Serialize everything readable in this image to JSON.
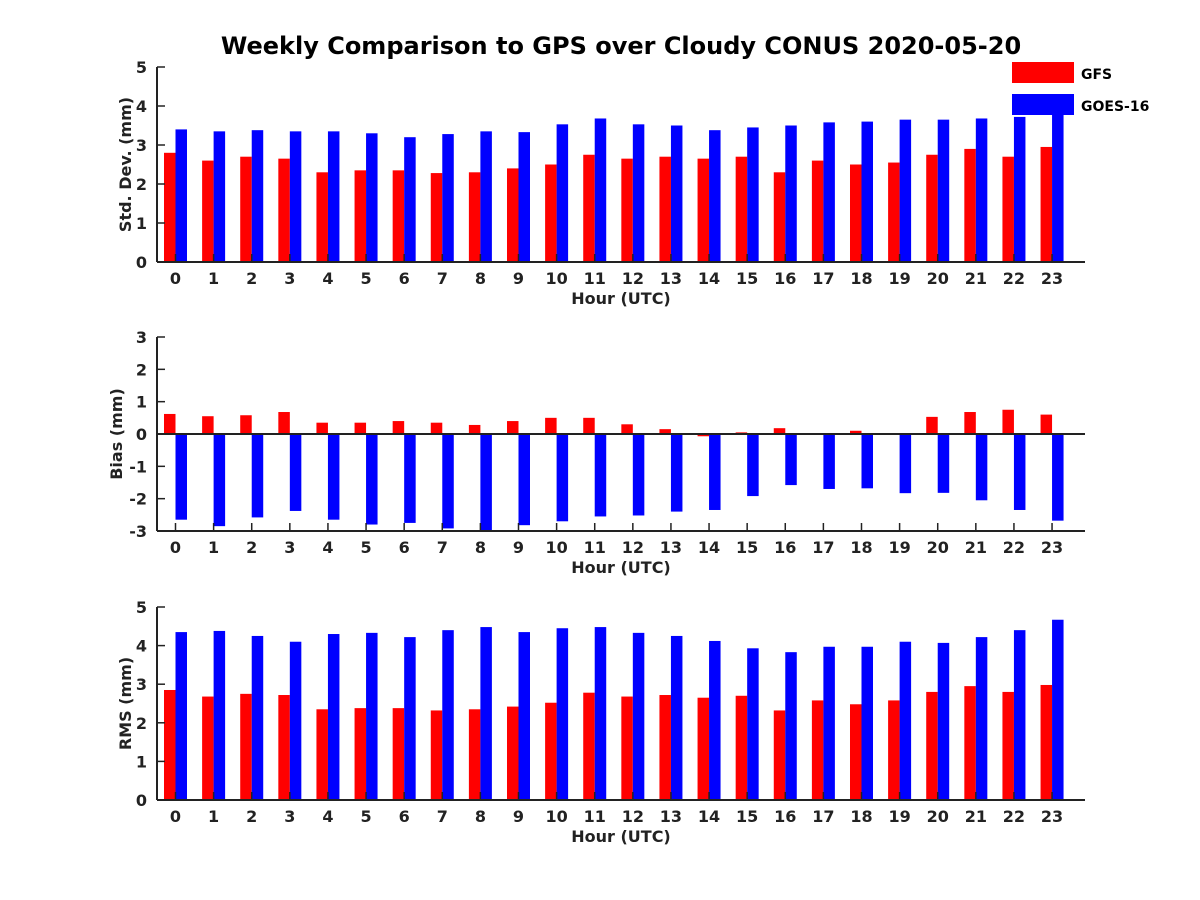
{
  "figure": {
    "title": "Weekly Comparison to GPS over Cloudy CONUS 2020-05-20"
  },
  "legend": {
    "placement": "top-right",
    "items": [
      {
        "label": "GFS",
        "color": "#ff0000"
      },
      {
        "label": "GOES-16",
        "color": "#0000ff"
      }
    ]
  },
  "chart_data": [
    {
      "type": "bar",
      "title": "",
      "xlabel": "Hour (UTC)",
      "ylabel": "Std. Dev. (mm)",
      "ylim": [
        0,
        5
      ],
      "yticks": [
        "0",
        "1",
        "2",
        "3",
        "4",
        "5"
      ],
      "grid": false,
      "categories": [
        "0",
        "1",
        "2",
        "3",
        "4",
        "5",
        "6",
        "7",
        "8",
        "9",
        "10",
        "11",
        "12",
        "13",
        "14",
        "15",
        "16",
        "17",
        "18",
        "19",
        "20",
        "21",
        "22",
        "23"
      ],
      "series": [
        {
          "name": "GFS",
          "color": "#ff0000",
          "values": [
            2.8,
            2.6,
            2.7,
            2.65,
            2.3,
            2.35,
            2.35,
            2.28,
            2.3,
            2.4,
            2.5,
            2.75,
            2.65,
            2.7,
            2.65,
            2.7,
            2.3,
            2.6,
            2.5,
            2.55,
            2.75,
            2.9,
            2.7,
            2.95
          ]
        },
        {
          "name": "GOES-16",
          "color": "#0000ff",
          "values": [
            3.4,
            3.35,
            3.38,
            3.35,
            3.35,
            3.3,
            3.2,
            3.28,
            3.35,
            3.33,
            3.53,
            3.68,
            3.53,
            3.5,
            3.38,
            3.45,
            3.5,
            3.58,
            3.6,
            3.65,
            3.65,
            3.68,
            3.72,
            3.8
          ]
        }
      ]
    },
    {
      "type": "bar",
      "title": "",
      "xlabel": "Hour (UTC)",
      "ylabel": "Bias (mm)",
      "ylim": [
        -3,
        3
      ],
      "yticks": [
        "-3",
        "-2",
        "-1",
        "0",
        "1",
        "2",
        "3"
      ],
      "grid": false,
      "categories": [
        "0",
        "1",
        "2",
        "3",
        "4",
        "5",
        "6",
        "7",
        "8",
        "9",
        "10",
        "11",
        "12",
        "13",
        "14",
        "15",
        "16",
        "17",
        "18",
        "19",
        "20",
        "21",
        "22",
        "23"
      ],
      "series": [
        {
          "name": "GFS",
          "color": "#ff0000",
          "values": [
            0.62,
            0.55,
            0.58,
            0.68,
            0.35,
            0.35,
            0.4,
            0.35,
            0.28,
            0.4,
            0.5,
            0.5,
            0.3,
            0.15,
            -0.07,
            0.05,
            0.18,
            0.0,
            0.1,
            0.03,
            0.53,
            0.68,
            0.75,
            0.6
          ]
        },
        {
          "name": "GOES-16",
          "color": "#0000ff",
          "values": [
            -2.65,
            -2.85,
            -2.58,
            -2.38,
            -2.65,
            -2.8,
            -2.75,
            -2.92,
            -2.98,
            -2.82,
            -2.7,
            -2.55,
            -2.52,
            -2.4,
            -2.35,
            -1.92,
            -1.58,
            -1.7,
            -1.68,
            -1.83,
            -1.82,
            -2.05,
            -2.35,
            -2.68
          ]
        }
      ]
    },
    {
      "type": "bar",
      "title": "",
      "xlabel": "Hour (UTC)",
      "ylabel": "RMS (mm)",
      "ylim": [
        0,
        5
      ],
      "yticks": [
        "0",
        "1",
        "2",
        "3",
        "4",
        "5"
      ],
      "grid": false,
      "categories": [
        "0",
        "1",
        "2",
        "3",
        "4",
        "5",
        "6",
        "7",
        "8",
        "9",
        "10",
        "11",
        "12",
        "13",
        "14",
        "15",
        "16",
        "17",
        "18",
        "19",
        "20",
        "21",
        "22",
        "23"
      ],
      "series": [
        {
          "name": "GFS",
          "color": "#ff0000",
          "values": [
            2.85,
            2.68,
            2.75,
            2.72,
            2.35,
            2.38,
            2.38,
            2.32,
            2.35,
            2.42,
            2.52,
            2.78,
            2.68,
            2.72,
            2.65,
            2.7,
            2.32,
            2.58,
            2.48,
            2.58,
            2.8,
            2.95,
            2.8,
            2.98
          ]
        },
        {
          "name": "GOES-16",
          "color": "#0000ff",
          "values": [
            4.35,
            4.38,
            4.25,
            4.1,
            4.3,
            4.33,
            4.22,
            4.4,
            4.48,
            4.35,
            4.45,
            4.48,
            4.33,
            4.25,
            4.12,
            3.93,
            3.83,
            3.97,
            3.97,
            4.1,
            4.07,
            4.22,
            4.4,
            4.67
          ]
        }
      ]
    }
  ]
}
